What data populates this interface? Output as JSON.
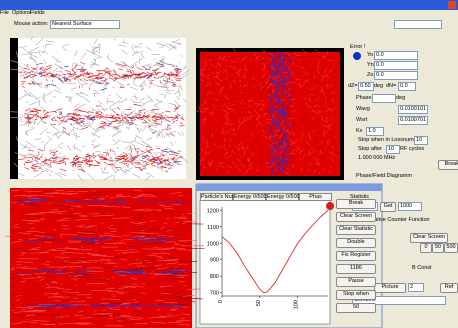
{
  "menu": [
    "File",
    "Options",
    "Fields"
  ],
  "toolbar": {
    "mouse_action_label": "Mouse action:",
    "mouse_action_value": "Nearest Surface"
  },
  "side": {
    "error": "Error !",
    "yo_label": "Yo",
    "yo": "0.0",
    "yn_label": "Yn",
    "yn": "0.0",
    "zo_label": "Zo",
    "zo": "0.0",
    "dz_label": "dZ=",
    "dz": "0.50",
    "dz_unit": "deg",
    "dn_label": "dN=",
    "dn": "0.0",
    "phase_label": "Phase",
    "phase_unit": "deg",
    "wavg_label": "Wavg",
    "wavg": "0.0100101",
    "wsrt_label": "Wsrt",
    "wsrt": "0.0100701",
    "kx_label": "Kx",
    "kx": "1.0",
    "stop_when": "Stop when in Lossnum",
    "stop_when_value": "10",
    "stop_after": "Stop after",
    "stop_after_value": "10",
    "rf_cycles": "RF cycles",
    "frequency": "1.000 000 MHz",
    "break": "Break",
    "diagram": "Phase/Field Diagramm",
    "statistic": "Statistic",
    "random": "Random",
    "get": "Get",
    "count": "1000",
    "relative": "Relative Counter Function",
    "clear_screen": "Clear Screen",
    "steps": [
      "0",
      "50",
      "500"
    ],
    "b_const": "B Const",
    "picture": "Picture",
    "picture_value": "2",
    "ref": "Ref",
    "combine": "Combine"
  },
  "plot": {
    "tabs": [
      "Particle's Num",
      "Energy 0/5000",
      "Energy 0/500",
      "Phas"
    ],
    "buttons": [
      "Break",
      "Clear Screen",
      "Clear Statistic",
      "Double",
      "Fix Register",
      "1186",
      "Pause",
      "Stop when",
      "50"
    ],
    "type": "line",
    "color": "#e01010",
    "x": [
      0,
      10,
      20,
      30,
      40,
      50,
      55,
      60,
      70,
      80,
      90,
      100,
      110,
      120,
      130,
      140
    ],
    "values": [
      1040,
      1000,
      940,
      860,
      790,
      720,
      700,
      705,
      760,
      840,
      920,
      1000,
      1060,
      1110,
      1160,
      1200
    ],
    "xlim": [
      0,
      140
    ],
    "xticks": [
      0,
      50,
      100
    ],
    "ylim": [
      680,
      1220
    ],
    "yticks": [
      700,
      800,
      900,
      1000,
      1100,
      1200
    ],
    "grid": false
  }
}
